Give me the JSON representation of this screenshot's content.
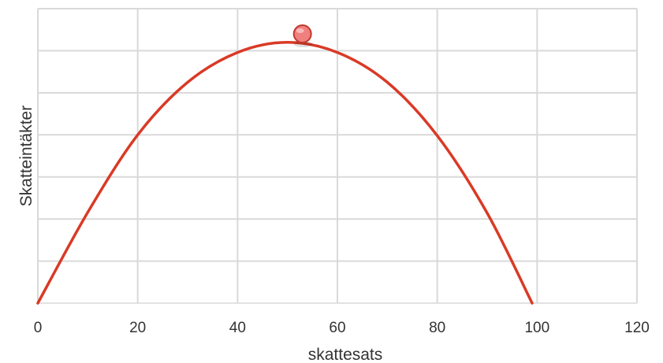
{
  "chart_data": {
    "type": "line",
    "title": "",
    "xlabel": "skattesats",
    "ylabel": "Skatteintäkter",
    "xlim": [
      0,
      120
    ],
    "ylim": [
      0,
      7
    ],
    "x_ticks": [
      "0",
      "20",
      "40",
      "60",
      "80",
      "100",
      "120"
    ],
    "y_tick_labels_shown": false,
    "grid": true,
    "legend": "none",
    "series": [
      {
        "kind": "curve",
        "color": "#d93a26",
        "points": [
          {
            "x": 0,
            "y": 0
          },
          {
            "x": 10,
            "y": 2.16
          },
          {
            "x": 20,
            "y": 4.0
          },
          {
            "x": 30,
            "y": 5.25
          },
          {
            "x": 40,
            "y": 5.96
          },
          {
            "x": 50,
            "y": 6.2
          },
          {
            "x": 60,
            "y": 5.96
          },
          {
            "x": 70,
            "y": 5.25
          },
          {
            "x": 80,
            "y": 3.98
          },
          {
            "x": 90,
            "y": 2.14
          },
          {
            "x": 99,
            "y": 0
          }
        ]
      },
      {
        "kind": "marker",
        "color": "#f08080",
        "points": [
          {
            "x": 53,
            "y": 6.4
          }
        ]
      }
    ]
  }
}
